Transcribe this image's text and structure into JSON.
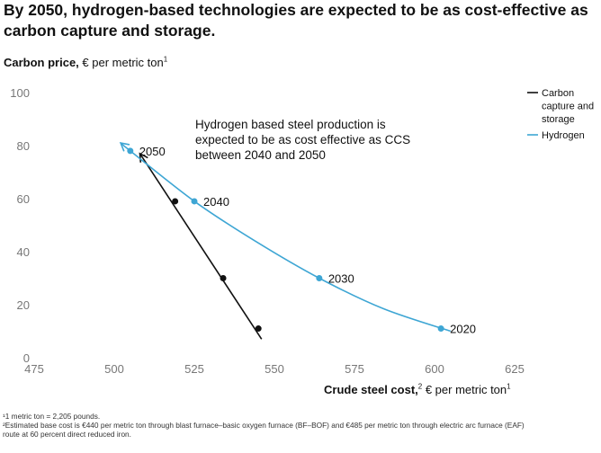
{
  "title": "By 2050, hydrogen-based technologies are expected to be as cost-effective as carbon capture and storage.",
  "y_label": {
    "bold": "Carbon price,",
    "rest": " € per metric ton",
    "sup": "1"
  },
  "x_label": {
    "bold": "Crude steel cost,",
    "sup": "2",
    "rest": " € per metric ton",
    "sup2": "1"
  },
  "annotation": [
    "Hydrogen based steel production is",
    "expected to be as cost effective as CCS",
    "between 2040 and 2050"
  ],
  "footnotes": [
    "¹1 metric ton = 2,205 pounds.",
    "²Estimated base cost is €440 per metric ton through blast furnace–basic oxygen furnace (BF–BOF) and €485 per metric ton through electric arc furnace (EAF)",
    "route at 60 percent direct reduced iron."
  ],
  "colors": {
    "ccs": "#111111",
    "hydrogen": "#3ea6d4",
    "axis_text": "#777777"
  },
  "chart_data": {
    "type": "line",
    "title": "By 2050, hydrogen-based technologies are expected to be as cost-effective as carbon capture and storage.",
    "xlabel": "Crude steel cost, € per metric ton",
    "ylabel": "Carbon price, € per metric ton",
    "xlim": [
      475,
      625
    ],
    "ylim": [
      0,
      100
    ],
    "x_ticks": [
      475,
      500,
      525,
      550,
      575,
      600,
      625
    ],
    "y_ticks": [
      0,
      20,
      40,
      60,
      80,
      100
    ],
    "grid": false,
    "legend_position": "top-right",
    "series": [
      {
        "name": "Carbon capture and storage",
        "line_x": [
          546,
          508
        ],
        "line_y": [
          7,
          77
        ],
        "points": [
          {
            "x": 545,
            "y": 11
          },
          {
            "x": 534,
            "y": 30
          },
          {
            "x": 519,
            "y": 59
          }
        ]
      },
      {
        "name": "Hydrogen",
        "line_x": [
          605,
          584,
          564,
          544,
          525,
          505,
          502
        ],
        "line_y": [
          10,
          18.5,
          30,
          44,
          59,
          78,
          81
        ],
        "points": [
          {
            "x": 602,
            "y": 11,
            "label": "2020"
          },
          {
            "x": 564,
            "y": 30,
            "label": "2030"
          },
          {
            "x": 525,
            "y": 59,
            "label": "2040"
          },
          {
            "x": 505,
            "y": 78,
            "label": "2050"
          }
        ]
      }
    ],
    "legend": [
      {
        "label": "Carbon capture and storage",
        "lines": [
          "Carbon",
          "capture and",
          "storage"
        ]
      },
      {
        "label": "Hydrogen",
        "lines": [
          "Hydrogen"
        ]
      }
    ]
  }
}
